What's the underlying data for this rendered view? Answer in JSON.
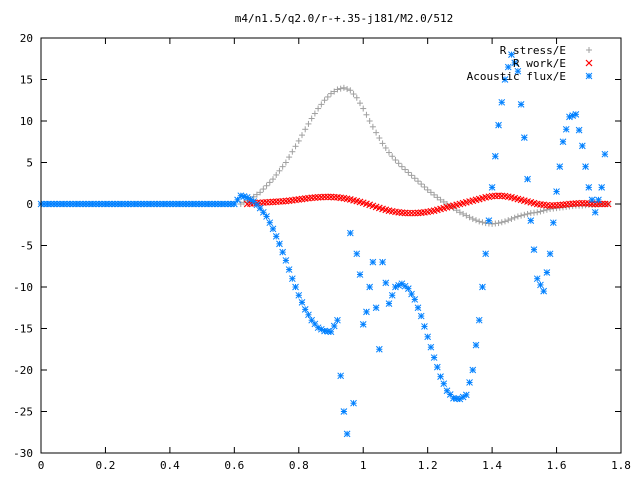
{
  "chart_data": {
    "type": "scatter",
    "title": "m4/n1.5/q2.0/r-+.35-j181/M2.0/512",
    "xlabel": "",
    "ylabel": "",
    "xlim": [
      0,
      1.8
    ],
    "ylim": [
      -30,
      20
    ],
    "x_ticks": [
      "0",
      "0.2",
      "0.4",
      "0.6",
      "0.8",
      "1",
      "1.2",
      "1.4",
      "1.6",
      "1.8"
    ],
    "y_ticks": [
      "20",
      "15",
      "10",
      "5",
      "0",
      "-5",
      "-10",
      "-15",
      "-20",
      "-25",
      "-30"
    ],
    "grid": false,
    "legend_position": "top-right",
    "series": [
      {
        "name": "R stress/E",
        "color": "#a0a0a0",
        "marker": "plus",
        "x": [
          0.62,
          0.65,
          0.68,
          0.7,
          0.72,
          0.74,
          0.76,
          0.78,
          0.8,
          0.82,
          0.84,
          0.86,
          0.88,
          0.9,
          0.92,
          0.94,
          0.96,
          0.98,
          1.0,
          1.02,
          1.04,
          1.06,
          1.08,
          1.1,
          1.12,
          1.14,
          1.16,
          1.18,
          1.2,
          1.22,
          1.24,
          1.26,
          1.28,
          1.3,
          1.32,
          1.34,
          1.36,
          1.38,
          1.4,
          1.42,
          1.44,
          1.46,
          1.48,
          1.5,
          1.52,
          1.54,
          1.56,
          1.58,
          1.6,
          1.62,
          1.64,
          1.66,
          1.68,
          1.7,
          1.72,
          1.74,
          1.76
        ],
        "y": [
          0.0,
          0.6,
          1.4,
          2.2,
          3.0,
          4.0,
          5.0,
          6.3,
          7.6,
          9.0,
          10.3,
          11.5,
          12.5,
          13.3,
          13.8,
          14.0,
          13.7,
          12.8,
          11.5,
          10.0,
          8.6,
          7.3,
          6.2,
          5.3,
          4.5,
          3.8,
          3.1,
          2.4,
          1.7,
          1.1,
          0.5,
          0.0,
          -0.5,
          -1.0,
          -1.4,
          -1.8,
          -2.1,
          -2.3,
          -2.4,
          -2.3,
          -2.1,
          -1.8,
          -1.5,
          -1.3,
          -1.1,
          -1.0,
          -0.8,
          -0.6,
          -0.5,
          -0.4,
          -0.3,
          -0.2,
          -0.2,
          -0.1,
          -0.1,
          0.0,
          0.0
        ]
      },
      {
        "name": "R work/E",
        "color": "#ff0000",
        "marker": "cross",
        "x": [
          0.64,
          0.66,
          0.68,
          0.7,
          0.72,
          0.74,
          0.76,
          0.78,
          0.8,
          0.82,
          0.84,
          0.86,
          0.88,
          0.9,
          0.92,
          0.94,
          0.96,
          0.98,
          1.0,
          1.02,
          1.04,
          1.06,
          1.08,
          1.1,
          1.12,
          1.14,
          1.16,
          1.18,
          1.2,
          1.22,
          1.24,
          1.26,
          1.28,
          1.3,
          1.32,
          1.34,
          1.36,
          1.38,
          1.4,
          1.42,
          1.44,
          1.46,
          1.48,
          1.5,
          1.52,
          1.54,
          1.56,
          1.58,
          1.6,
          1.62,
          1.64,
          1.66,
          1.68,
          1.7,
          1.72,
          1.74,
          1.76
        ],
        "y": [
          0.0,
          0.1,
          0.15,
          0.2,
          0.25,
          0.3,
          0.35,
          0.45,
          0.55,
          0.65,
          0.75,
          0.8,
          0.85,
          0.85,
          0.8,
          0.7,
          0.55,
          0.35,
          0.15,
          -0.1,
          -0.35,
          -0.6,
          -0.8,
          -0.95,
          -1.05,
          -1.1,
          -1.1,
          -1.05,
          -0.95,
          -0.8,
          -0.6,
          -0.4,
          -0.2,
          0.0,
          0.2,
          0.4,
          0.6,
          0.8,
          0.95,
          1.0,
          0.95,
          0.8,
          0.6,
          0.4,
          0.2,
          0.0,
          -0.1,
          -0.2,
          -0.15,
          -0.1,
          0.0,
          0.05,
          0.1,
          0.05,
          0.0,
          0.0,
          0.0
        ]
      },
      {
        "name": "Acoustic flux/E",
        "color": "#0080ff",
        "marker": "star",
        "x": [
          0.0,
          0.02,
          0.04,
          0.06,
          0.08,
          0.1,
          0.12,
          0.14,
          0.16,
          0.18,
          0.2,
          0.22,
          0.24,
          0.26,
          0.28,
          0.3,
          0.32,
          0.34,
          0.36,
          0.38,
          0.4,
          0.42,
          0.44,
          0.46,
          0.48,
          0.5,
          0.52,
          0.54,
          0.56,
          0.58,
          0.6,
          0.62,
          0.64,
          0.66,
          0.68,
          0.7,
          0.72,
          0.74,
          0.76,
          0.78,
          0.8,
          0.82,
          0.84,
          0.86,
          0.88,
          0.9,
          0.92,
          0.93,
          0.94,
          0.95,
          0.96,
          0.97,
          0.98,
          0.99,
          1.0,
          1.01,
          1.02,
          1.03,
          1.04,
          1.05,
          1.06,
          1.08,
          1.1,
          1.12,
          1.14,
          1.16,
          1.18,
          1.2,
          1.22,
          1.24,
          1.26,
          1.28,
          1.3,
          1.32,
          1.34,
          1.36,
          1.38,
          1.4,
          1.42,
          1.44,
          1.46,
          1.48,
          1.5,
          1.52,
          1.54,
          1.56,
          1.58,
          1.6,
          1.62,
          1.64,
          1.66,
          1.68,
          1.7,
          1.72,
          1.74,
          1.75
        ],
        "y": [
          0.0,
          0.0,
          0.0,
          0.0,
          0.0,
          0.0,
          0.0,
          0.0,
          0.0,
          0.0,
          0.0,
          0.0,
          0.0,
          0.0,
          0.0,
          0.0,
          0.0,
          0.0,
          0.0,
          0.0,
          0.0,
          0.0,
          0.0,
          0.0,
          0.0,
          0.0,
          0.0,
          0.0,
          0.0,
          0.0,
          0.0,
          1.0,
          0.8,
          0.3,
          -0.5,
          -1.5,
          -3.0,
          -4.8,
          -6.8,
          -9.0,
          -11.0,
          -12.7,
          -14.0,
          -14.9,
          -15.3,
          -15.4,
          -14.0,
          -20.7,
          -25.0,
          -27.7,
          -3.5,
          -24.0,
          -6.0,
          -8.5,
          -14.5,
          -13.0,
          -10.0,
          -7.0,
          -12.5,
          -17.5,
          -7.0,
          -12.0,
          -10.0,
          -9.6,
          -10.2,
          -11.5,
          -13.5,
          -16.0,
          -18.5,
          -20.8,
          -22.5,
          -23.4,
          -23.5,
          -23.0,
          -20.0,
          -14.0,
          -6.0,
          2.0,
          9.5,
          15.0,
          18.0,
          16.0,
          8.0,
          -2.0,
          -9.0,
          -10.5,
          -6.0,
          1.5,
          7.5,
          10.5,
          10.8,
          7.0,
          2.0,
          -1.0,
          2.0,
          6.0
        ]
      }
    ]
  }
}
